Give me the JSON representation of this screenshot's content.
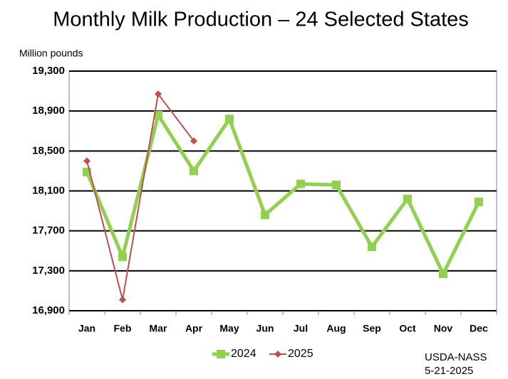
{
  "chart_data": {
    "type": "line",
    "title": "Monthly Milk Production – 24 Selected States",
    "y_label": "Million pounds",
    "categories": [
      "Jan",
      "Feb",
      "Mar",
      "Apr",
      "May",
      "Jun",
      "Jul",
      "Aug",
      "Sep",
      "Oct",
      "Nov",
      "Dec"
    ],
    "series": [
      {
        "name": "2024",
        "color": "#92d050",
        "values": [
          18290,
          17440,
          18860,
          18300,
          18820,
          17860,
          18170,
          18160,
          17540,
          18020,
          17270,
          17990
        ]
      },
      {
        "name": "2025",
        "color": "#c0504d",
        "values": [
          18400,
          17010,
          19070,
          18600,
          null,
          null,
          null,
          null,
          null,
          null,
          null,
          null
        ]
      }
    ],
    "ylim": [
      16900,
      19300
    ],
    "yticks": [
      {
        "value": 16900,
        "label": "16,900"
      },
      {
        "value": 17300,
        "label": "17,300"
      },
      {
        "value": 17700,
        "label": "17,700"
      },
      {
        "value": 18100,
        "label": "18,100"
      },
      {
        "value": 18500,
        "label": "18,500"
      },
      {
        "value": 18900,
        "label": "18,900"
      },
      {
        "value": 19300,
        "label": "19,300"
      }
    ],
    "grid": true,
    "legend": "bottom",
    "annotations": [
      "USDA-NASS",
      "5-21-2025"
    ]
  }
}
